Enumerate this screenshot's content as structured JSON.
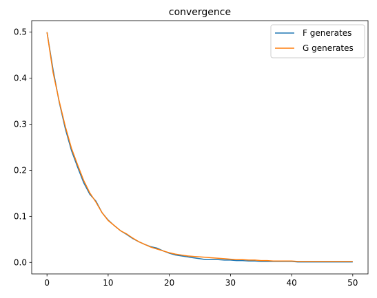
{
  "chart_data": {
    "type": "line",
    "title": "convergence",
    "xlabel": "",
    "ylabel": "",
    "xlim": [
      -2.5,
      52.5
    ],
    "ylim": [
      -0.025,
      0.525
    ],
    "xticks": [
      0,
      10,
      20,
      30,
      40,
      50
    ],
    "yticks": [
      0.0,
      0.1,
      0.2,
      0.3,
      0.4,
      0.5
    ],
    "ytick_labels": [
      "0.0",
      "0.1",
      "0.2",
      "0.3",
      "0.4",
      "0.5"
    ],
    "grid": false,
    "legend_position": "top-right",
    "x": [
      0,
      1,
      2,
      3,
      4,
      5,
      6,
      7,
      8,
      9,
      10,
      11,
      12,
      13,
      14,
      15,
      16,
      17,
      18,
      19,
      20,
      21,
      22,
      23,
      24,
      25,
      26,
      27,
      28,
      29,
      30,
      31,
      32,
      33,
      34,
      35,
      36,
      37,
      38,
      39,
      40,
      41,
      42,
      43,
      44,
      45,
      46,
      47,
      48,
      49,
      50
    ],
    "series": [
      {
        "name": "F generates",
        "color": "#1f77b4",
        "values": [
          0.5,
          0.418,
          0.348,
          0.29,
          0.243,
          0.207,
          0.173,
          0.148,
          0.133,
          0.108,
          0.092,
          0.08,
          0.069,
          0.061,
          0.052,
          0.045,
          0.039,
          0.034,
          0.031,
          0.025,
          0.02,
          0.016,
          0.014,
          0.012,
          0.01,
          0.008,
          0.006,
          0.006,
          0.006,
          0.005,
          0.005,
          0.004,
          0.004,
          0.003,
          0.003,
          0.002,
          0.002,
          0.002,
          0.002,
          0.002,
          0.002,
          0.001,
          0.001,
          0.001,
          0.001,
          0.001,
          0.001,
          0.001,
          0.001,
          0.001,
          0.001
        ]
      },
      {
        "name": "G generates",
        "color": "#ff7f0e",
        "values": [
          0.5,
          0.412,
          0.35,
          0.295,
          0.248,
          0.212,
          0.178,
          0.151,
          0.131,
          0.108,
          0.091,
          0.08,
          0.069,
          0.062,
          0.053,
          0.045,
          0.039,
          0.033,
          0.029,
          0.025,
          0.021,
          0.018,
          0.016,
          0.014,
          0.013,
          0.012,
          0.011,
          0.01,
          0.009,
          0.008,
          0.007,
          0.006,
          0.006,
          0.005,
          0.005,
          0.004,
          0.004,
          0.003,
          0.003,
          0.003,
          0.003,
          0.002,
          0.002,
          0.002,
          0.002,
          0.002,
          0.002,
          0.002,
          0.002,
          0.002,
          0.002
        ]
      }
    ]
  }
}
